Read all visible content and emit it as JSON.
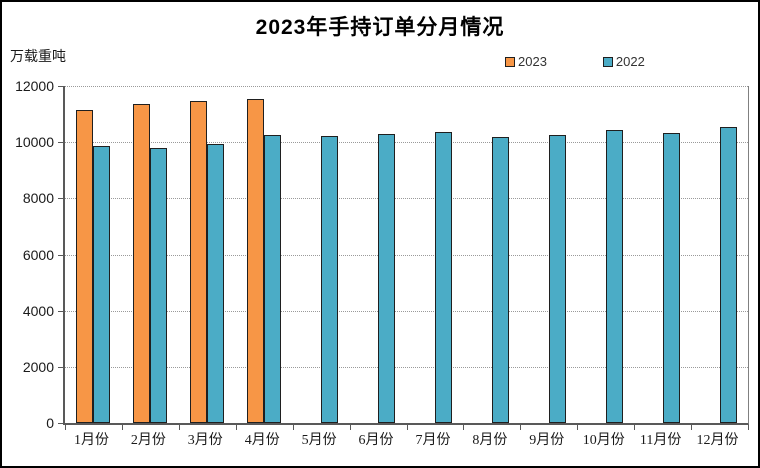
{
  "chart_data": {
    "type": "bar",
    "title": "2023年手持订单分月情况",
    "ylabel": "万载重吨",
    "xlabel": "",
    "categories": [
      "1月份",
      "2月份",
      "3月份",
      "4月份",
      "5月份",
      "6月份",
      "7月份",
      "8月份",
      "9月份",
      "10月份",
      "11月份",
      "12月份"
    ],
    "series": [
      {
        "name": "2023",
        "color": "#F79646",
        "values": [
          11142,
          11364,
          11452,
          11520,
          null,
          null,
          null,
          null,
          null,
          null,
          null,
          null
        ]
      },
      {
        "name": "2022",
        "color": "#4BACC6",
        "values": [
          9858,
          9798,
          9949,
          10247,
          10230,
          10274,
          10366,
          10190,
          10261,
          10441,
          10340,
          10557
        ]
      }
    ],
    "ylim": [
      0,
      12000
    ],
    "y_ticks": [
      0,
      2000,
      4000,
      6000,
      8000,
      10000,
      12000
    ],
    "grid": "horizontal-dotted",
    "legend_position": "top-right",
    "bar_border_color": "#1F1F1F",
    "axis_color": "#595959"
  }
}
